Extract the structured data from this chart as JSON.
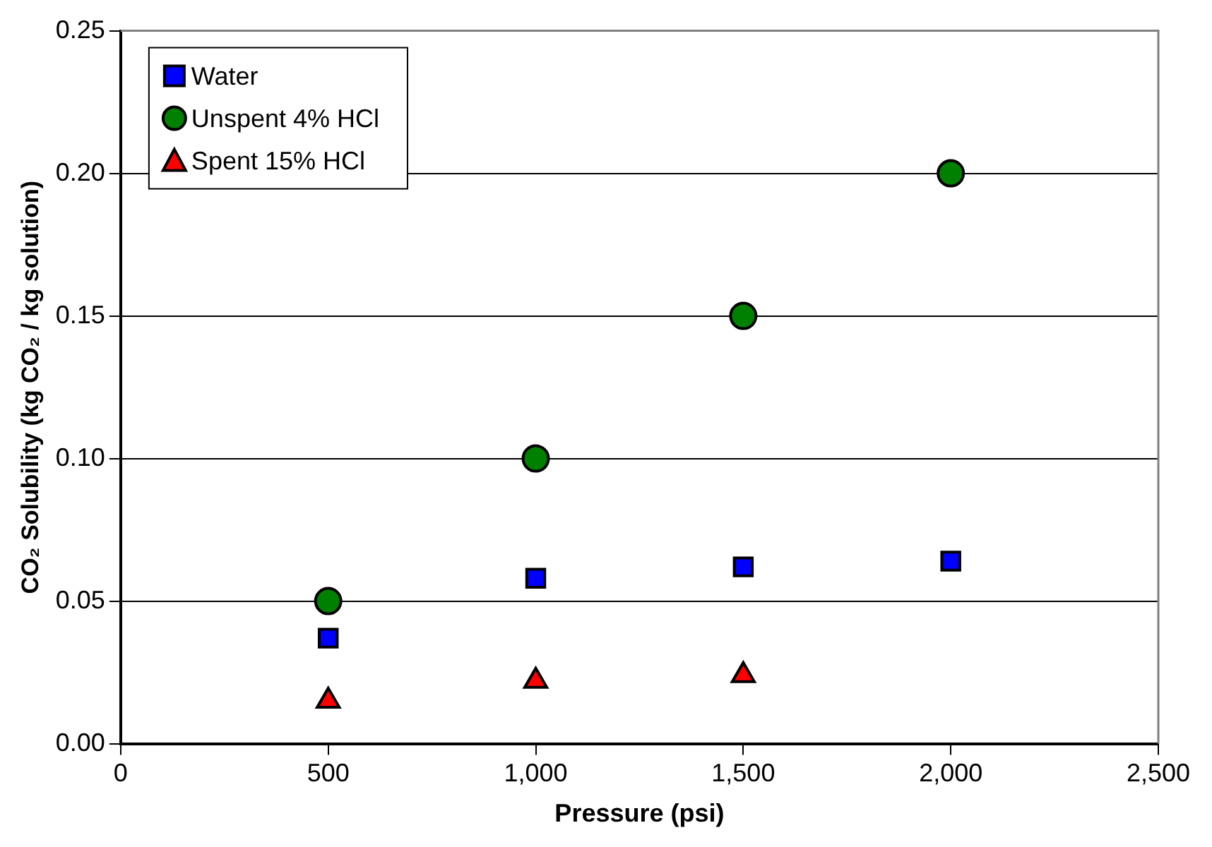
{
  "chart_data": {
    "type": "scatter",
    "xlabel": "Pressure (psi)",
    "ylabel": "CO₂ Solubility (kg CO₂ / kg solution)",
    "xlim": [
      0,
      2500
    ],
    "xticks": [
      {
        "value": 0,
        "label": "0"
      },
      {
        "value": 500,
        "label": "500"
      },
      {
        "value": 1000,
        "label": "1,000"
      },
      {
        "value": 1500,
        "label": "1,500"
      },
      {
        "value": 2000,
        "label": "2,000"
      },
      {
        "value": 2500,
        "label": "2,500"
      }
    ],
    "ylim": [
      0,
      0.25
    ],
    "yticks": [
      {
        "value": 0,
        "label": "0.00"
      },
      {
        "value": 0.05,
        "label": "0.05"
      },
      {
        "value": 0.1,
        "label": "0.10"
      },
      {
        "value": 0.15,
        "label": "0.15"
      },
      {
        "value": 0.2,
        "label": "0.20"
      },
      {
        "value": 0.25,
        "label": "0.25"
      }
    ],
    "grid": "y",
    "legend": "top left",
    "series": [
      {
        "name": "Water",
        "color": "#0000ff",
        "marker": "square",
        "x": [
          500,
          1000,
          1500,
          2000
        ],
        "values": [
          0.037,
          0.058,
          0.062,
          0.064
        ]
      },
      {
        "name": "Unspent 4% HCl",
        "color": "#008000",
        "marker": "circle",
        "x": [
          500,
          1000,
          1500,
          2000
        ],
        "values": [
          0.05,
          0.1,
          0.15,
          0.2
        ]
      },
      {
        "name": "Spent 15% HCl",
        "color": "#ff0000",
        "marker": "triangle",
        "x": [
          500,
          1000,
          1500
        ],
        "values": [
          0.015,
          0.022,
          0.024
        ]
      }
    ]
  }
}
